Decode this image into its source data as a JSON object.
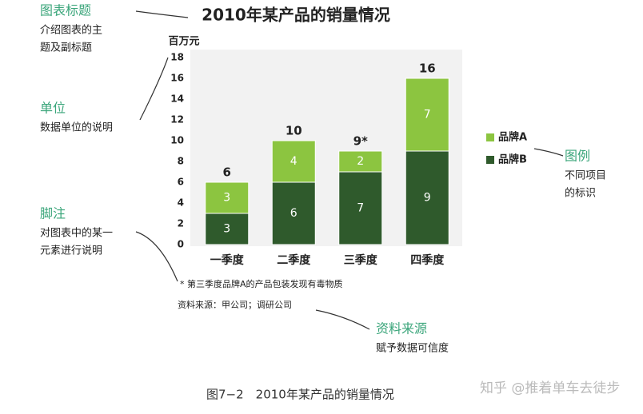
{
  "chart_data": {
    "type": "stacked_bar",
    "title": "2010年某产品的销量情况",
    "unit": "百万元",
    "categories": [
      "一季度",
      "二季度",
      "三季度",
      "四季度"
    ],
    "series": [
      {
        "name": "品牌B",
        "color": "#2f5a2c",
        "values": [
          3,
          6,
          7,
          9
        ]
      },
      {
        "name": "品牌A",
        "color": "#8cc540",
        "values": [
          3,
          4,
          2,
          7
        ]
      }
    ],
    "totals": [
      6,
      10,
      9,
      16
    ],
    "total_labels": [
      "6",
      "10",
      "9*",
      "16"
    ],
    "ylim": [
      0,
      18
    ],
    "yticks": [
      0,
      2,
      4,
      6,
      8,
      10,
      12,
      14,
      16,
      18
    ],
    "footnote": "* 第三季度品牌A的产品包装发现有毒物质",
    "source": "资料来源：甲公司；调研公司",
    "caption": "图7−2　2010年某产品的销量情况",
    "watermark": "知乎 @推着单车去徒步",
    "annotations": [
      {
        "title": "图表标题",
        "text": [
          "介绍图表的主",
          "题及副标题"
        ]
      },
      {
        "title": "单位",
        "text": [
          "数据单位的说明"
        ]
      },
      {
        "title": "脚注",
        "text": [
          "对图表中的某一",
          "元素进行说明"
        ]
      },
      {
        "title": "图例",
        "text": [
          "不同项目",
          "的标识"
        ]
      },
      {
        "title": "资料来源",
        "text": [
          "赋予数据可信度"
        ]
      }
    ]
  }
}
